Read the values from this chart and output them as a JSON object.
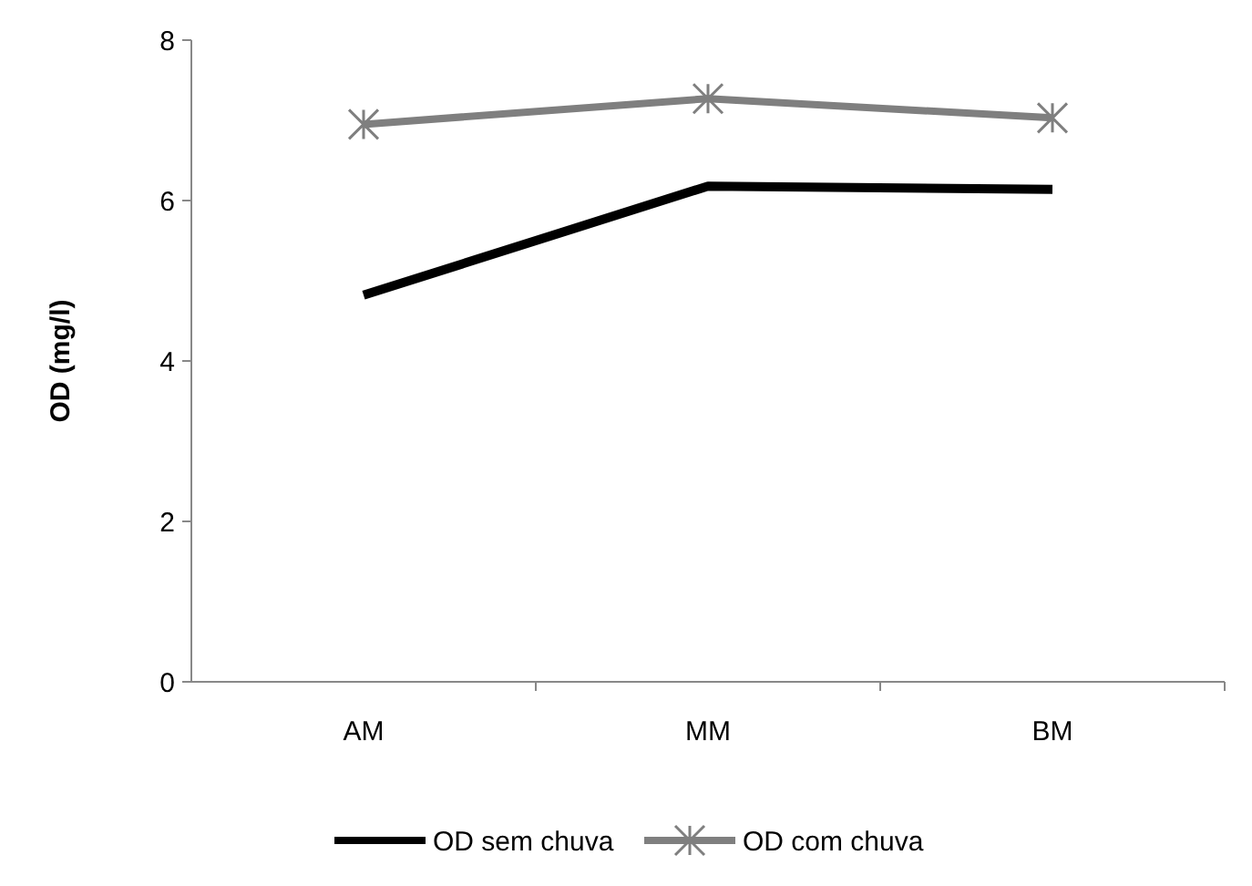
{
  "chart_data": {
    "type": "line",
    "ylabel": "OD (mg/l)",
    "categories": [
      "AM",
      "MM",
      "BM"
    ],
    "series": [
      {
        "name": "OD sem chuva",
        "color": "#000000",
        "values": [
          4.82,
          6.18,
          6.14
        ],
        "marker": "none"
      },
      {
        "name": "OD com chuva",
        "color": "#7f7f7f",
        "values": [
          6.95,
          7.27,
          7.03
        ],
        "marker": "cross"
      }
    ],
    "ylim": [
      0,
      8
    ],
    "yticks": [
      0,
      2,
      4,
      6,
      8
    ],
    "legend": "bottom",
    "grid": false
  }
}
